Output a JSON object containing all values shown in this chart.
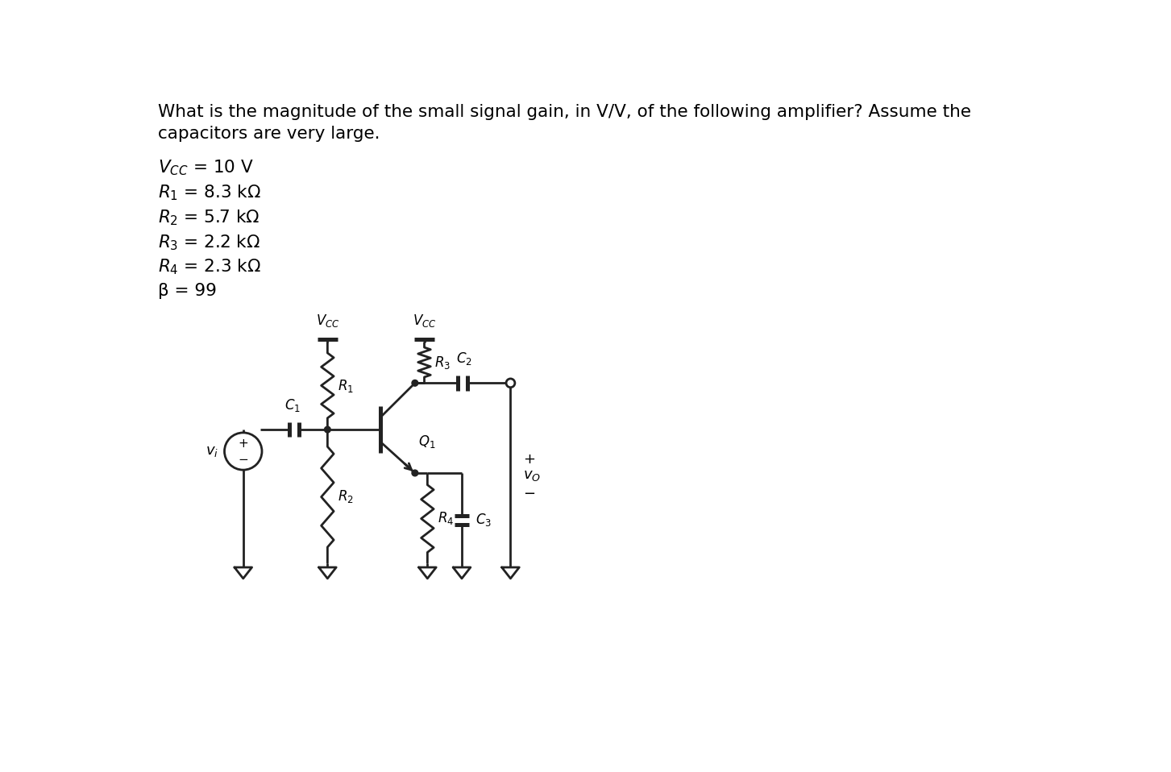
{
  "title_line1": "What is the magnitude of the small signal gain, in V/V, of the following amplifier? Assume the",
  "title_line2": "capacitors are very large.",
  "params": [
    [
      "V",
      "CC",
      " = 10 V"
    ],
    [
      "R",
      "1",
      " = 8.3 kΩ"
    ],
    [
      "R",
      "2",
      " = 5.7 kΩ"
    ],
    [
      "R",
      "3",
      " = 2.2 kΩ"
    ],
    [
      "R",
      "4",
      " = 2.3 kΩ"
    ],
    [
      "β",
      "",
      " = 99"
    ]
  ],
  "bg_color": "#ffffff",
  "text_color": "#000000",
  "line_color": "#222222",
  "line_width": 2.0,
  "font_size": 15.5
}
